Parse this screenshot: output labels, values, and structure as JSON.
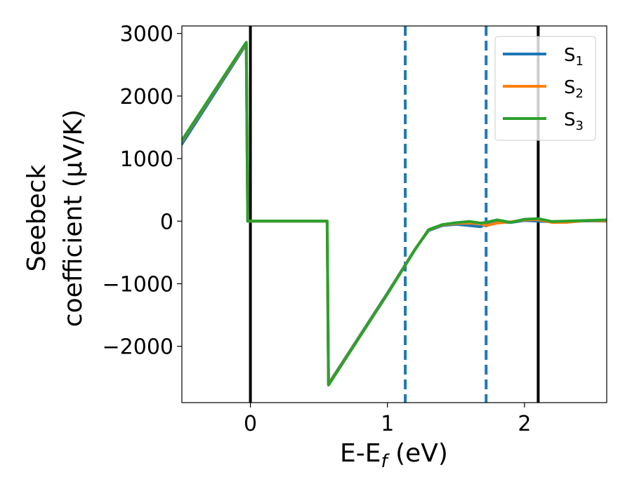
{
  "chart_data": {
    "type": "line",
    "xlabel": {
      "main": "E-E",
      "sub": "f",
      "rest": " (eV)"
    },
    "ylabel": {
      "line1": "Seebeck",
      "line2": "coefficient  (μV/K)"
    },
    "xlim": [
      -0.5,
      2.6
    ],
    "ylim": [
      -2900,
      3120
    ],
    "xticks": [
      0,
      1,
      2
    ],
    "xtick_labels": [
      "0",
      "1",
      "2"
    ],
    "yticks": [
      3000,
      2000,
      1000,
      0,
      -1000,
      -2000
    ],
    "ytick_labels": [
      "3000",
      "2000",
      "1000",
      "0",
      "−1000",
      "−2000"
    ],
    "grid": false,
    "legend_position": "top-right",
    "vertical_lines": [
      {
        "x": 0.0,
        "style": "solid",
        "color": "#000000"
      },
      {
        "x": 2.1,
        "style": "solid",
        "color": "#000000"
      },
      {
        "x": 1.13,
        "style": "dashed",
        "color": "#1f77b4"
      },
      {
        "x": 1.72,
        "style": "dashed",
        "color": "#1f77b4"
      }
    ],
    "series": [
      {
        "name": "S",
        "sub": "1",
        "color": "#1f77b4",
        "x": [
          -0.5,
          -0.03,
          -0.02,
          0.56,
          0.57,
          1.0,
          1.2,
          1.3,
          1.4,
          1.5,
          1.6,
          1.68,
          1.72,
          1.8,
          1.9,
          2.0,
          2.1,
          2.2,
          2.3,
          2.45,
          2.6
        ],
        "y": [
          1230,
          2830,
          0,
          0,
          -2600,
          -1150,
          -450,
          -150,
          -70,
          -50,
          -70,
          -90,
          -40,
          -20,
          -20,
          10,
          0,
          -10,
          -10,
          5,
          0
        ]
      },
      {
        "name": "S",
        "sub": "2",
        "color": "#ff7f0e",
        "x": [
          -0.5,
          -0.03,
          -0.02,
          0.56,
          0.57,
          1.0,
          1.2,
          1.3,
          1.4,
          1.5,
          1.6,
          1.68,
          1.72,
          1.8,
          1.9,
          2.0,
          2.1,
          2.2,
          2.3,
          2.45,
          2.6
        ],
        "y": [
          1280,
          2850,
          0,
          0,
          -2610,
          -1160,
          -455,
          -140,
          -60,
          -35,
          -30,
          -40,
          -70,
          -30,
          -10,
          20,
          25,
          -20,
          -20,
          10,
          5
        ]
      },
      {
        "name": "S",
        "sub": "3",
        "color": "#2ca02c",
        "x": [
          -0.5,
          -0.03,
          -0.02,
          0.56,
          0.57,
          1.0,
          1.2,
          1.3,
          1.4,
          1.5,
          1.6,
          1.68,
          1.72,
          1.8,
          1.9,
          2.0,
          2.1,
          2.2,
          2.3,
          2.45,
          2.6
        ],
        "y": [
          1290,
          2860,
          0,
          0,
          -2620,
          -1165,
          -460,
          -135,
          -55,
          -25,
          -5,
          -30,
          -20,
          20,
          -20,
          30,
          40,
          -5,
          0,
          10,
          20
        ]
      }
    ]
  }
}
